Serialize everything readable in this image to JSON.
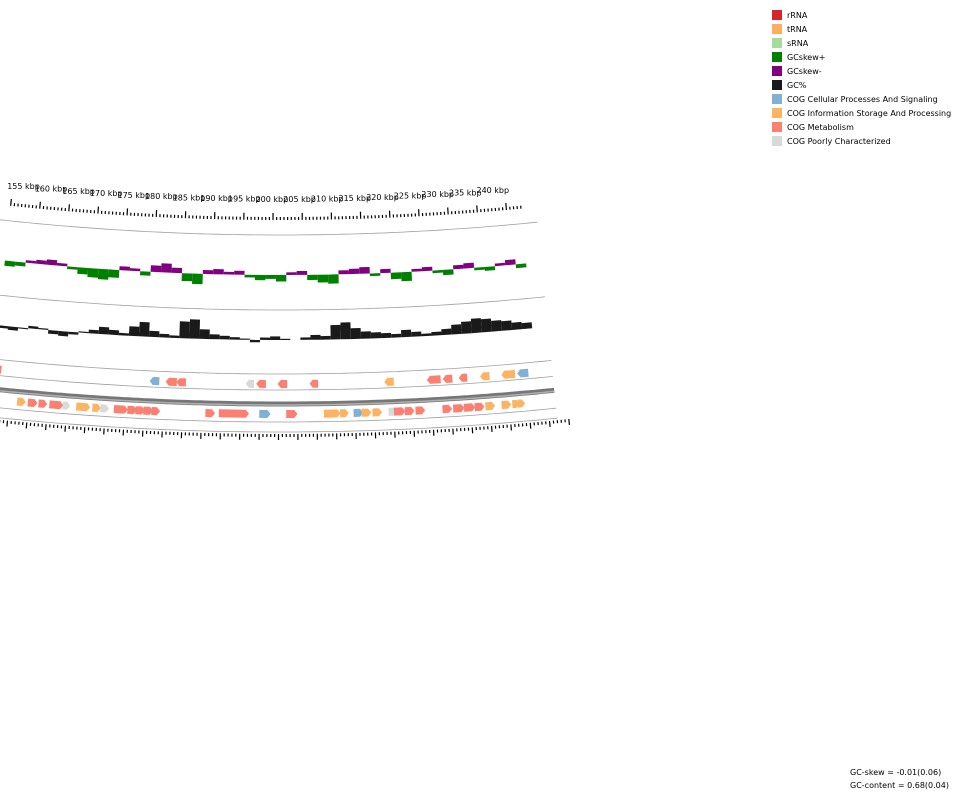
{
  "legend": [
    {
      "label": "rRNA",
      "color": "#d62728"
    },
    {
      "label": "tRNA",
      "color": "#fdae61"
    },
    {
      "label": "sRNA",
      "color": "#a6dba0"
    },
    {
      "label": "GCskew+",
      "color": "#008000"
    },
    {
      "label": "GCskew-",
      "color": "#800080"
    },
    {
      "label": "GC%",
      "color": "#1a1a1a"
    },
    {
      "label": "COG Cellular Processes And Signaling",
      "color": "#80b1d3"
    },
    {
      "label": "COG Information Storage And Processing",
      "color": "#fdb462"
    },
    {
      "label": "COG Metabolism",
      "color": "#fb8072"
    },
    {
      "label": "COG Poorly Characterized",
      "color": "#d9d9d9"
    }
  ],
  "axis": {
    "unit": "kbp",
    "labels": [
      "155 kbp",
      "160 kbp",
      "165 kbp",
      "170 kbp",
      "175 kbp",
      "180 kbp",
      "185 kbp",
      "190 kbp",
      "195 kbp",
      "200 kbp",
      "205 kbp",
      "210 kbp",
      "215 kbp",
      "220 kbp",
      "225 kbp",
      "230 kbp",
      "235 kbp",
      "240 kbp"
    ]
  },
  "stats": {
    "gc_skew": "GC-skew = -0.01(0.06)",
    "gc_content": "GC-content = 0.68(0.04)"
  },
  "colors": {
    "cellular": "#80b1d3",
    "info": "#fdb462",
    "metabolism": "#fb8072",
    "poor": "#d9d9d9",
    "gc": "#1a1a1a",
    "skew_pos": "#008000",
    "skew_neg": "#800080",
    "backbone": "#777777",
    "ring": "#a0a0a0"
  }
}
